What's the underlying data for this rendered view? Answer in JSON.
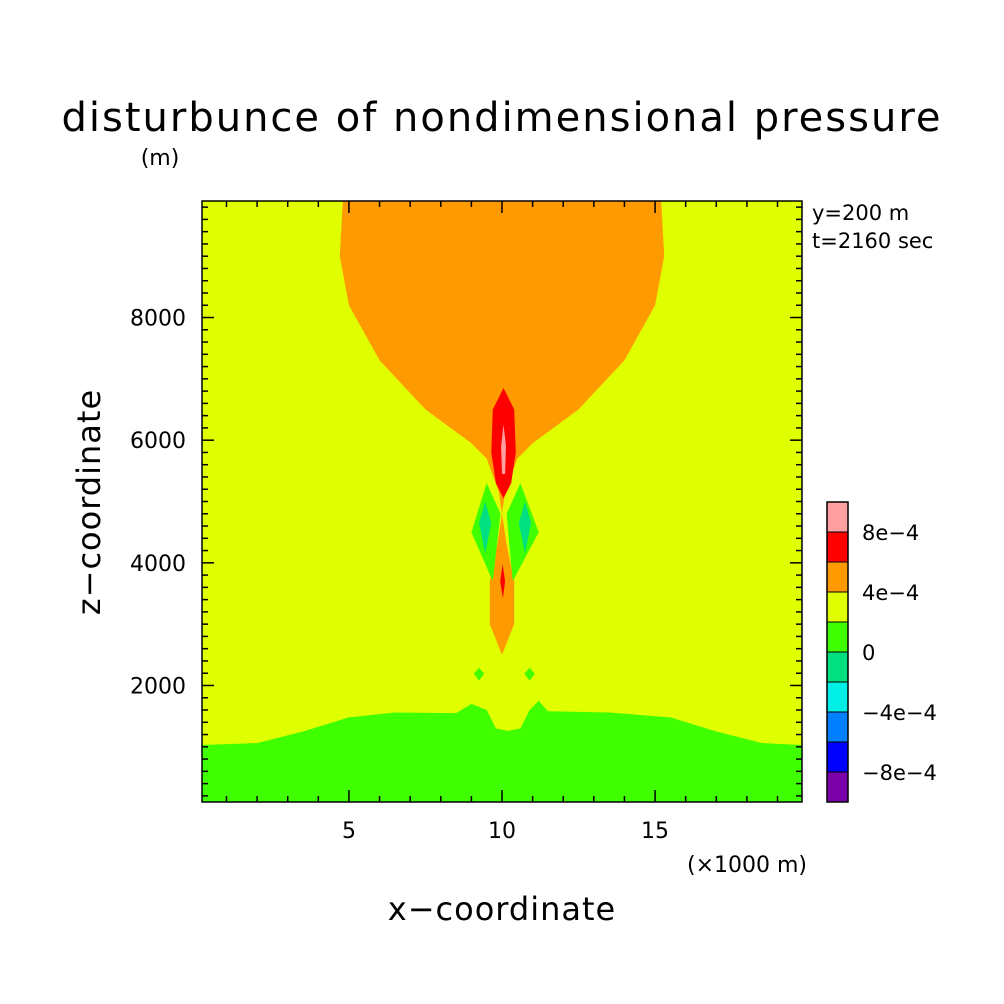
{
  "chart_data": {
    "type": "heatmap",
    "title": "disturbunce of nondimensional pressure",
    "ylabel": "z−coordinate",
    "yunit": "(m)",
    "xlabel": "x−coordinate",
    "xunit": "(×1000 m)",
    "xlim": [
      0.2,
      19.8
    ],
    "ylim": [
      100,
      9900
    ],
    "xticks": [
      5,
      10,
      15
    ],
    "xtick_labels": [
      "5",
      "10",
      "15"
    ],
    "yticks": [
      2000,
      4000,
      6000,
      8000
    ],
    "ytick_labels": [
      "2000",
      "4000",
      "6000",
      "8000"
    ],
    "annotation_lines": [
      "y=200 m",
      "t=2160 sec"
    ],
    "colorbar": {
      "levels": [
        -0.001,
        -0.0008,
        -0.0006,
        -0.0004,
        -0.0002,
        0,
        0.0002,
        0.0004,
        0.0006,
        0.0008,
        0.001
      ],
      "colors": [
        "#7a00a8",
        "#0000ff",
        "#0080ff",
        "#00f0e8",
        "#00e080",
        "#40ff00",
        "#e0ff00",
        "#ff9a00",
        "#ff0000",
        "#ffa0a0"
      ],
      "tick_values": [
        -0.0008,
        -0.0004,
        0,
        0.0004,
        0.0008
      ],
      "tick_labels": [
        "−8e−4",
        "−4e−4",
        "0",
        "4e−4",
        "8e−4"
      ]
    },
    "background_level_color": "#e0ff00",
    "regions": [
      {
        "name": "surface-negative-layer",
        "value_range": [
          0,
          0.0002
        ],
        "color": "#40ff00",
        "polygon": [
          [
            0.2,
            100
          ],
          [
            0.2,
            1030
          ],
          [
            2,
            1060
          ],
          [
            3.5,
            1250
          ],
          [
            5,
            1480
          ],
          [
            6.5,
            1560
          ],
          [
            8.5,
            1550
          ],
          [
            9,
            1700
          ],
          [
            9.5,
            1600
          ],
          [
            9.8,
            1300
          ],
          [
            10.2,
            1260
          ],
          [
            10.6,
            1300
          ],
          [
            10.9,
            1600
          ],
          [
            11.2,
            1750
          ],
          [
            11.5,
            1580
          ],
          [
            13.5,
            1560
          ],
          [
            15.5,
            1480
          ],
          [
            17,
            1250
          ],
          [
            18.5,
            1060
          ],
          [
            19.8,
            1030
          ],
          [
            19.8,
            100
          ]
        ]
      },
      {
        "name": "upper-positive-plume",
        "value_range": [
          0.0004,
          0.0006
        ],
        "color": "#ff9a00",
        "polygon": [
          [
            4.8,
            9900
          ],
          [
            4.7,
            9000
          ],
          [
            5.0,
            8200
          ],
          [
            6.0,
            7300
          ],
          [
            7.5,
            6500
          ],
          [
            9.0,
            5950
          ],
          [
            9.5,
            5700
          ],
          [
            9.9,
            5150
          ],
          [
            10.0,
            4800
          ],
          [
            9.85,
            4300
          ],
          [
            9.6,
            3700
          ],
          [
            9.6,
            3000
          ],
          [
            10.0,
            2500
          ],
          [
            10.4,
            3000
          ],
          [
            10.4,
            3700
          ],
          [
            10.15,
            4300
          ],
          [
            10.0,
            4800
          ],
          [
            10.1,
            5150
          ],
          [
            10.5,
            5700
          ],
          [
            11.0,
            5950
          ],
          [
            12.5,
            6500
          ],
          [
            14.0,
            7300
          ],
          [
            15.0,
            8200
          ],
          [
            15.3,
            9000
          ],
          [
            15.2,
            9900
          ]
        ]
      },
      {
        "name": "core-high-positive",
        "value_range": [
          0.0006,
          0.0008
        ],
        "color": "#ff0000",
        "polygon": [
          [
            10.05,
            6850
          ],
          [
            10.4,
            6500
          ],
          [
            10.45,
            5800
          ],
          [
            10.3,
            5300
          ],
          [
            10.05,
            5050
          ],
          [
            9.8,
            5300
          ],
          [
            9.65,
            5800
          ],
          [
            9.7,
            6500
          ]
        ]
      },
      {
        "name": "core-peak",
        "value_range": [
          0.0008,
          0.001
        ],
        "color": "#ffa0a0",
        "polygon": [
          [
            10.05,
            6250
          ],
          [
            10.13,
            5900
          ],
          [
            10.1,
            5450
          ],
          [
            10.0,
            5450
          ],
          [
            9.97,
            5900
          ]
        ]
      },
      {
        "name": "lower-red-filament",
        "value_range": [
          0.0006,
          0.0008
        ],
        "color": "#ff0000",
        "polygon": [
          [
            10.02,
            3980
          ],
          [
            10.1,
            3700
          ],
          [
            10.03,
            3420
          ],
          [
            9.94,
            3700
          ]
        ]
      },
      {
        "name": "left-negative-lobe",
        "value_range": [
          0,
          0.0002
        ],
        "color": "#40ff00",
        "polygon": [
          [
            9.5,
            5300
          ],
          [
            9.95,
            4800
          ],
          [
            9.7,
            3700
          ],
          [
            9.0,
            4500
          ]
        ]
      },
      {
        "name": "right-negative-lobe",
        "value_range": [
          0,
          0.0002
        ],
        "color": "#40ff00",
        "polygon": [
          [
            10.6,
            5300
          ],
          [
            11.2,
            4500
          ],
          [
            10.35,
            3700
          ],
          [
            10.15,
            4800
          ]
        ]
      },
      {
        "name": "left-lobe-core",
        "value_range": [
          -0.0002,
          0
        ],
        "color": "#00e080",
        "polygon": [
          [
            9.45,
            5000
          ],
          [
            9.65,
            4650
          ],
          [
            9.45,
            4150
          ],
          [
            9.25,
            4650
          ]
        ]
      },
      {
        "name": "right-lobe-core",
        "value_range": [
          -0.0002,
          0
        ],
        "color": "#00e080",
        "polygon": [
          [
            10.75,
            5000
          ],
          [
            10.95,
            4650
          ],
          [
            10.75,
            4150
          ],
          [
            10.55,
            4650
          ]
        ]
      },
      {
        "name": "left-small-negative-blob",
        "value_range": [
          0,
          0.0002
        ],
        "color": "#40ff00",
        "polygon": [
          [
            9.25,
            2290
          ],
          [
            9.42,
            2190
          ],
          [
            9.25,
            2080
          ],
          [
            9.08,
            2190
          ]
        ]
      },
      {
        "name": "right-small-negative-blob",
        "value_range": [
          0,
          0.0002
        ],
        "color": "#40ff00",
        "polygon": [
          [
            10.9,
            2290
          ],
          [
            11.07,
            2190
          ],
          [
            10.9,
            2080
          ],
          [
            10.73,
            2190
          ]
        ]
      }
    ]
  }
}
